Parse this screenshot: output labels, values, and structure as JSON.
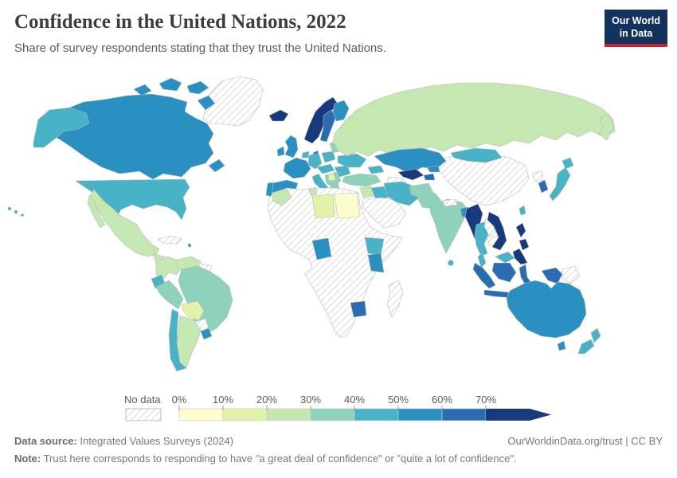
{
  "header": {
    "title": "Confidence in the United Nations, 2022",
    "subtitle": "Share of survey respondents stating that they trust the United Nations.",
    "logo_line1": "Our World",
    "logo_line2": "in Data"
  },
  "colors": {
    "logo_navy": "#12335e",
    "logo_red": "#cc2233",
    "border_gray": "#b9b9b9",
    "hatch_gray": "#d9d9d9",
    "text_gray": "#5b5b5b"
  },
  "legend": {
    "no_data_label": "No data",
    "tick_labels": [
      "0%",
      "10%",
      "20%",
      "30%",
      "40%",
      "50%",
      "60%",
      "70%"
    ],
    "bins": [
      "0-10%",
      "10-20%",
      "20-30%",
      "30-40%",
      "40-50%",
      "50-60%",
      "60-70%",
      ">70%"
    ],
    "bin_colors": [
      "#fdfdcc",
      "#e1f3a9",
      "#c5e7b2",
      "#8ed2bb",
      "#48b2c6",
      "#2a8fc1",
      "#2a6cb0",
      "#17397e"
    ]
  },
  "chart_data": {
    "type": "heatmap",
    "map_type": "world-choropleth",
    "title": "Confidence in the United Nations, 2022",
    "unit": "% of respondents",
    "year": "2022",
    "legend_position": "bottom",
    "values": {
      "greenland": "no-data",
      "canada": "50-60%",
      "alaska": "40-50%",
      "united-states": "40-50%",
      "hawaii": "40-50%",
      "mexico": "20-30%",
      "guatemala": "20-30%",
      "nicaragua": "no-data",
      "cuba": "no-data",
      "puerto-rico": "50-60%",
      "colombia": "20-30%",
      "venezuela": "20-30%",
      "guyanas": "no-data",
      "ecuador": "40-50%",
      "peru": "30-40%",
      "brazil": "30-40%",
      "bolivia": "10-20%",
      "paraguay": "no-data",
      "chile": "40-50%",
      "argentina": "20-30%",
      "uruguay": "50-60%",
      "iceland": ">70%",
      "norway": ">70%",
      "sweden": "60-70%",
      "finland": "50-60%",
      "denmark": "60-70%",
      "united-kingdom": "50-60%",
      "ireland": "50-60%",
      "france": "50-60%",
      "spain": "50-60%",
      "portugal": "50-60%",
      "germany": "40-50%",
      "low-countries": "40-50%",
      "poland": "40-50%",
      "central-europe": "40-50%",
      "italy": "40-50%",
      "serbia": "10-20%",
      "balkans": "30-40%",
      "greece": "30-40%",
      "romania-bulgaria": "40-50%",
      "ukraine": "40-50%",
      "baltics": "30-40%",
      "russia": "20-30%",
      "kazakhstan": "50-60%",
      "uzbekistan": ">70%",
      "turkmenistan": "no-data",
      "kyrgyzstan": "50-60%",
      "tajikistan": "60-70%",
      "caucasus": "40-50%",
      "turkey": "30-40%",
      "levant": "20-30%",
      "iraq": "40-50%",
      "arabian-peninsula": "no-data",
      "iran": "40-50%",
      "afghanistan": "30-40%",
      "pakistan": "30-40%",
      "india": "30-40%",
      "nepal": "no-data",
      "bangladesh": "50-60%",
      "sri-lanka": "40-50%",
      "china": "no-data",
      "mongolia": "40-50%",
      "myanmar": ">70%",
      "thailand": "40-50%",
      "laos": "no-data",
      "cambodia": "no-data",
      "vietnam": ">70%",
      "philippines": ">70%",
      "malaysia": "40-50%",
      "indonesia": "60-70%",
      "papua-new-guinea": "no-data",
      "japan": "40-50%",
      "north-korea": "no-data",
      "south-korea": "60-70%",
      "taiwan": "40-50%",
      "africa": "no-data",
      "morocco": "20-30%",
      "tunisia": "20-30%",
      "libya": "10-20%",
      "egypt": "0-10%",
      "nigeria": "50-60%",
      "ethiopia": "40-50%",
      "kenya": "50-60%",
      "zimbabwe": "60-70%",
      "madagascar": "no-data",
      "australia": "50-60%",
      "new-zealand": "40-50%"
    }
  },
  "footer": {
    "source_label": "Data source:",
    "source_text": " Integrated Values Surveys (2024)",
    "link_text": "OurWorldinData.org/trust | CC BY",
    "note_label": "Note:",
    "note_text": " Trust here corresponds to responding to have \"a great deal of confidence\" or \"quite a lot of confidence\"."
  }
}
